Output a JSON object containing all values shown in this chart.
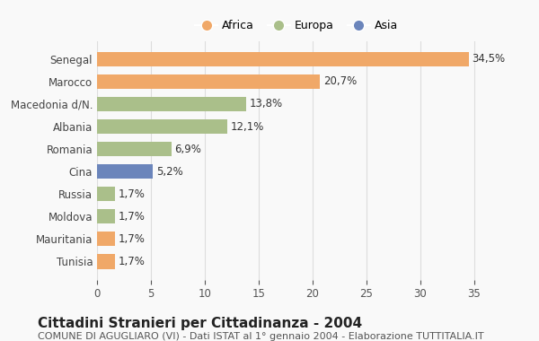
{
  "countries": [
    "Tunisia",
    "Mauritania",
    "Moldova",
    "Russia",
    "Cina",
    "Romania",
    "Albania",
    "Macedonia d/N.",
    "Marocco",
    "Senegal"
  ],
  "values": [
    1.7,
    1.7,
    1.7,
    1.7,
    5.2,
    6.9,
    12.1,
    13.8,
    20.7,
    34.5
  ],
  "continents": [
    "Africa",
    "Africa",
    "Europa",
    "Europa",
    "Asia",
    "Europa",
    "Europa",
    "Europa",
    "Africa",
    "Africa"
  ],
  "colors": {
    "Africa": "#F0A868",
    "Europa": "#AABF8A",
    "Asia": "#6B85BB"
  },
  "bar_labels": [
    "1,7%",
    "1,7%",
    "1,7%",
    "1,7%",
    "5,2%",
    "6,9%",
    "12,1%",
    "13,8%",
    "20,7%",
    "34,5%"
  ],
  "xlim": [
    0,
    37
  ],
  "xticks": [
    0,
    5,
    10,
    15,
    20,
    25,
    30,
    35
  ],
  "title": "Cittadini Stranieri per Cittadinanza - 2004",
  "subtitle": "COMUNE DI AGUGLIARO (VI) - Dati ISTAT al 1° gennaio 2004 - Elaborazione TUTTITALIA.IT",
  "background_color": "#f9f9f9",
  "legend_labels": [
    "Africa",
    "Europa",
    "Asia"
  ],
  "grid_color": "#dddddd",
  "title_fontsize": 11,
  "subtitle_fontsize": 8,
  "label_fontsize": 8.5,
  "tick_fontsize": 8.5
}
